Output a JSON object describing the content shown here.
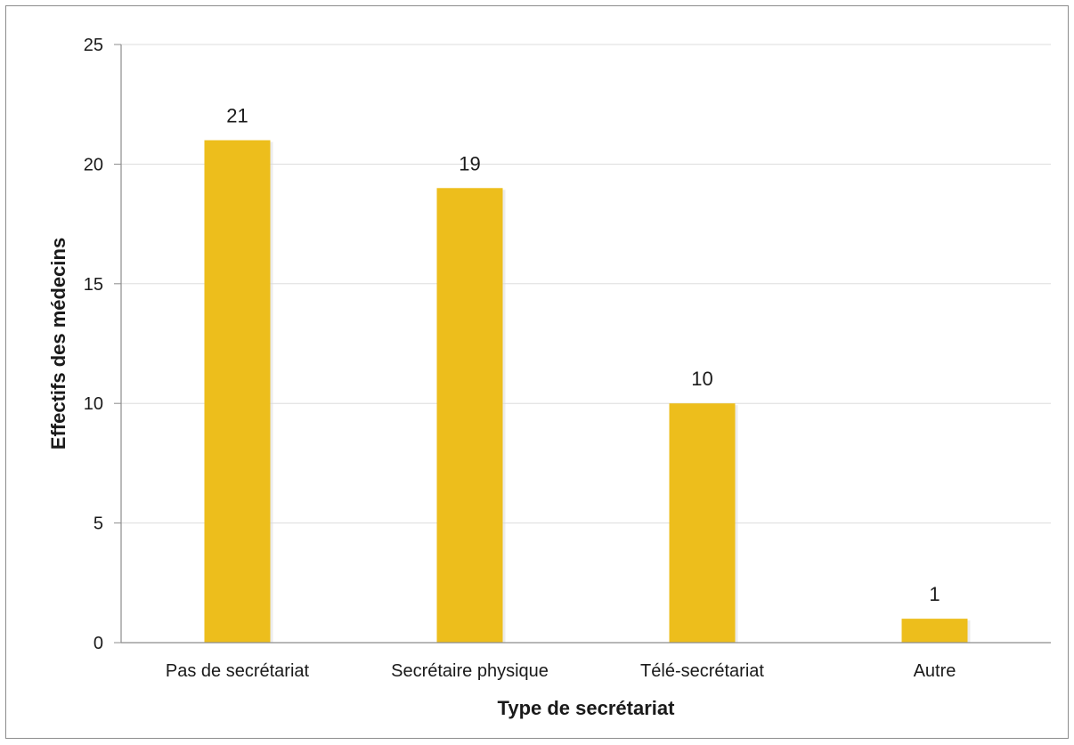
{
  "chart_data": {
    "type": "bar",
    "categories": [
      "Pas de secrétariat",
      "Secrétaire physique",
      "Télé-secrétariat",
      "Autre"
    ],
    "values": [
      21,
      19,
      10,
      1
    ],
    "xlabel": "Type de secrétariat",
    "ylabel": "Effectifs des médecins",
    "ylim": [
      0,
      25
    ],
    "yticks": [
      0,
      5,
      10,
      15,
      20,
      25
    ],
    "grid": true,
    "bar_color": "#EDBE1C",
    "gridline_color": "#DDDDDD",
    "axis_color": "#8C8C8C",
    "data_labels": true
  }
}
